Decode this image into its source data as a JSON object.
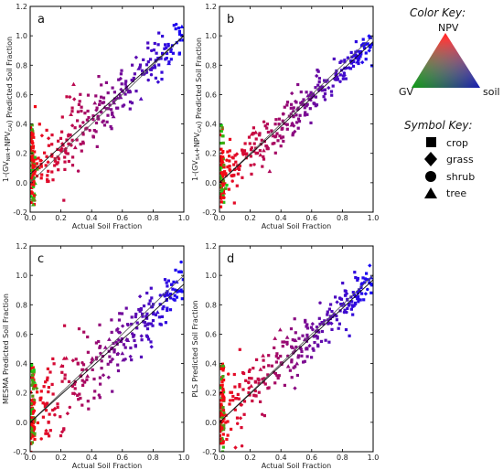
{
  "chart_data": [
    {
      "type": "scatter",
      "panel": "a",
      "xlabel": "Actual Soil Fraction",
      "ylabel": {
        "pre": "1-(GV",
        "sub1": "NIR",
        "mid": "+NPV",
        "sub2": "CAI",
        "post": ") Predicted Soil Fraction"
      },
      "xlim": [
        0,
        1
      ],
      "ylim": [
        -0.2,
        1.2
      ],
      "xticks": [
        "0.0",
        "0.2",
        "0.4",
        "0.6",
        "0.8",
        "1.0"
      ],
      "yticks": [
        "-0.2",
        "0.0",
        "0.2",
        "0.4",
        "0.6",
        "0.8",
        "1.0",
        "1.2"
      ],
      "one_to_one_line": true,
      "fit_line": [
        [
          0,
          0.06
        ],
        [
          1,
          1.0
        ]
      ],
      "point_noise_sd": 0.11
    },
    {
      "type": "scatter",
      "panel": "b",
      "xlabel": "Actual Soil Fraction",
      "ylabel": {
        "pre": "1-(GV",
        "sub1": "SA",
        "mid": "+NPV",
        "sub2": "CAI",
        "post": ") Predicted Soil Fraction"
      },
      "xlim": [
        0,
        1
      ],
      "ylim": [
        -0.2,
        1.2
      ],
      "xticks": [
        "0.0",
        "0.2",
        "0.4",
        "0.6",
        "0.8",
        "1.0"
      ],
      "yticks": [
        "-0.2",
        "0.0",
        "0.2",
        "0.4",
        "0.6",
        "0.8",
        "1.0",
        "1.2"
      ],
      "one_to_one_line": true,
      "fit_line": [
        [
          0,
          0.0
        ],
        [
          1,
          0.96
        ]
      ],
      "point_noise_sd": 0.08
    },
    {
      "type": "scatter",
      "panel": "c",
      "xlabel": "Actual Soil Fraction",
      "ylabel": {
        "pre": "MESMA Predicted Soil Fraction",
        "sub1": "",
        "mid": "",
        "sub2": "",
        "post": ""
      },
      "xlim": [
        0,
        1
      ],
      "ylim": [
        -0.2,
        1.2
      ],
      "xticks": [
        "0.0",
        "0.2",
        "0.4",
        "0.6",
        "0.8",
        "1.0"
      ],
      "yticks": [
        "-0.2",
        "0.0",
        "0.2",
        "0.4",
        "0.6",
        "0.8",
        "1.0",
        "1.2"
      ],
      "one_to_one_line": true,
      "fit_line": [
        [
          0,
          0.0
        ],
        [
          1,
          0.94
        ]
      ],
      "point_noise_sd": 0.13
    },
    {
      "type": "scatter",
      "panel": "d",
      "xlabel": "Actual Soil Fraction",
      "ylabel": {
        "pre": "PLS Predicted Soil Fraction",
        "sub1": "",
        "mid": "",
        "sub2": "",
        "post": ""
      },
      "xlim": [
        0,
        1
      ],
      "ylim": [
        -0.2,
        1.2
      ],
      "xticks": [
        "0.0",
        "0.2",
        "0.4",
        "0.6",
        "0.8",
        "1.0"
      ],
      "yticks": [
        "-0.2",
        "0.0",
        "0.2",
        "0.4",
        "0.6",
        "0.8",
        "1.0",
        "1.2"
      ],
      "one_to_one_line": true,
      "fit_line": [
        [
          0,
          0.0
        ],
        [
          1,
          0.97
        ]
      ],
      "point_noise_sd": 0.1
    }
  ],
  "color_key": {
    "title": "Color Key:",
    "npv": "NPV",
    "gv": "GV",
    "soil": "soil",
    "colors": {
      "npv": "#ff2a2a",
      "gv": "#22cc22",
      "soil": "#1a1aee"
    }
  },
  "symbol_key": {
    "title": "Symbol Key:",
    "items": [
      {
        "shape": "square",
        "label": "crop"
      },
      {
        "shape": "diamond",
        "label": "grass"
      },
      {
        "shape": "circle",
        "label": "shrub"
      },
      {
        "shape": "triangle",
        "label": "tree"
      }
    ]
  }
}
